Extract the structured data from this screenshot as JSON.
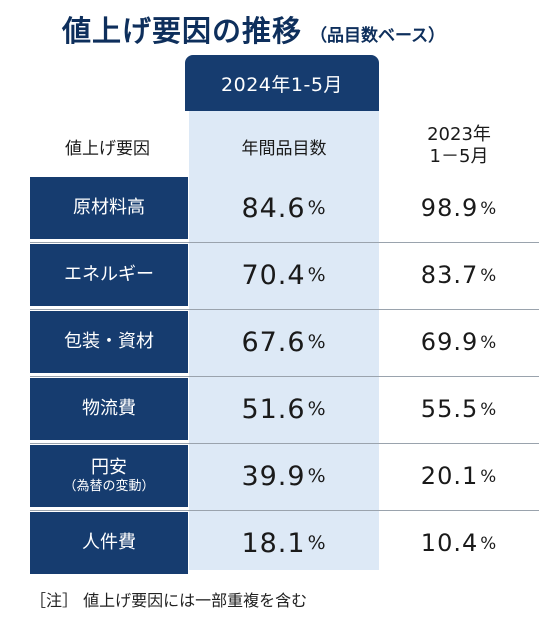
{
  "title": {
    "main": "値上げ要因の推移",
    "sub": "（品目数ベース）"
  },
  "header": {
    "period_2024": "2024年1-5月",
    "factor_label": "値上げ要因",
    "items_label": "年間品目数",
    "period_2023_line1": "2023年",
    "period_2023_line2": "1－5月"
  },
  "rows": [
    {
      "factor": "原材料高",
      "note": "",
      "v2024": "84.6",
      "v2023": "98.9"
    },
    {
      "factor": "エネルギー",
      "note": "",
      "v2024": "70.4",
      "v2023": "83.7"
    },
    {
      "factor": "包装・資材",
      "note": "",
      "v2024": "67.6",
      "v2023": "69.9"
    },
    {
      "factor": "物流費",
      "note": "",
      "v2024": "51.6",
      "v2023": "55.5"
    },
    {
      "factor": "円安",
      "note": "（為替の変動）",
      "v2024": "39.9",
      "v2023": "20.1"
    },
    {
      "factor": "人件費",
      "note": "",
      "v2024": "18.1",
      "v2023": "10.4"
    }
  ],
  "unit": "%",
  "footnote": "［注］ 値上げ要因には一部重複を含む",
  "colors": {
    "navy": "#163c6f",
    "highlight": "#dde9f6",
    "title": "#0e2f5c"
  }
}
